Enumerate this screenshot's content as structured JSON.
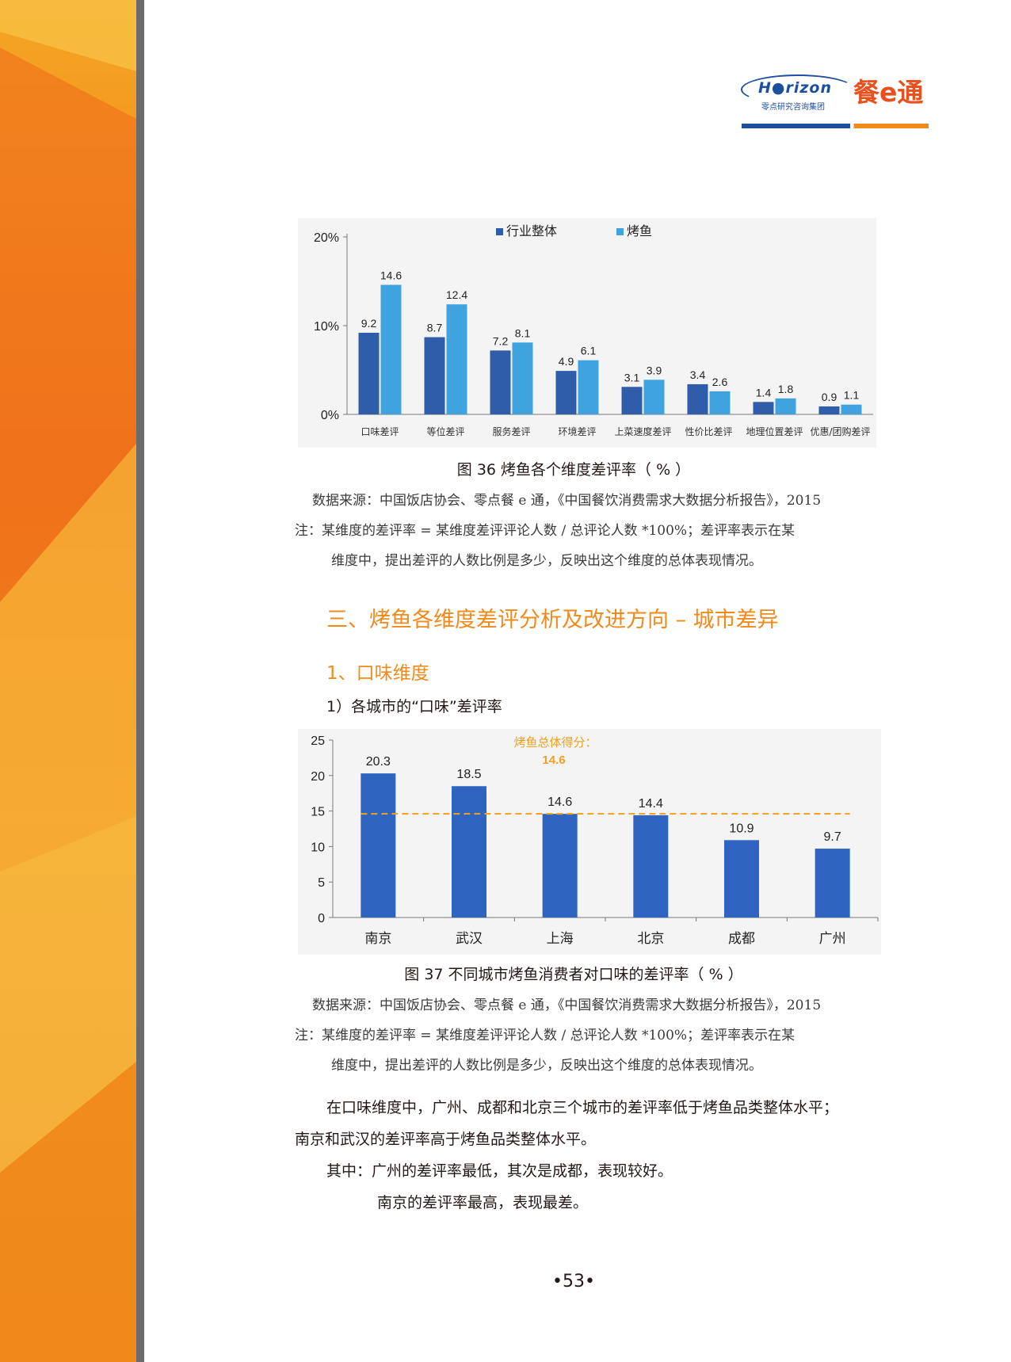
{
  "header": {
    "logo_text": "H●rizon",
    "logo_subtitle": "零点研究咨询集团",
    "brand_text": "餐e通"
  },
  "figure36": {
    "caption": "图 36    烤鱼各个维度差评率（ % ）",
    "source": "数据来源：中国饭店协会、零点餐 e 通，《中国餐饮消费需求大数据分析报告》，2015",
    "note_line1": "注：某维度的差评率 = 某维度差评评论人数 / 总评论人数 *100%；差评率表示在某",
    "note_line2": "维度中，提出差评的人数比例是多少，反映出这个维度的总体表现情况。"
  },
  "figure37": {
    "caption": "图 37    不同城市烤鱼消费者对口味的差评率（ % ）",
    "source": "数据来源：中国饭店协会、零点餐 e 通，《中国餐饮消费需求大数据分析报告》，2015",
    "note_line1": "注：某维度的差评率 = 某维度差评评论人数 / 总评论人数 *100%；差评率表示在某",
    "note_line2": "维度中，提出差评的人数比例是多少，反映出这个维度的总体表现情况。"
  },
  "section": {
    "title": "三、烤鱼各维度差评分析及改进方向 – 城市差异",
    "subtitle": "1、口味维度",
    "sub_subtitle": "1）各城市的“口味”差评率"
  },
  "body": {
    "p1_line1": "在口味维度中，广州、成都和北京三个城市的差评率低于烤鱼品类整体水平；",
    "p1_line2": "南京和武汉的差评率高于烤鱼品类整体水平。",
    "p2": "其中：广州的差评率最低，其次是成都，表现较好。",
    "p3": "南京的差评率最高，表现最差。"
  },
  "page_number": "•53•",
  "chart_data": [
    {
      "type": "bar",
      "categories": [
        "口味差评",
        "等位差评",
        "服务差评",
        "环境差评",
        "上菜速度差评",
        "性价比差评",
        "地理位置差评",
        "优惠/团购差评"
      ],
      "series": [
        {
          "name": "行业整体",
          "color": "#2f5daa",
          "values": [
            9.2,
            8.7,
            7.2,
            4.9,
            3.1,
            3.4,
            1.4,
            0.9
          ]
        },
        {
          "name": "烤鱼",
          "color": "#3fa3e0",
          "values": [
            14.6,
            12.4,
            8.1,
            6.1,
            3.9,
            2.6,
            1.8,
            1.1
          ]
        }
      ],
      "data_labels": [
        [
          "9.2",
          "8.7",
          "7.2",
          "4.9",
          "3.1",
          "3.4",
          "1.4",
          "0.9"
        ],
        [
          "14.6",
          "12.4",
          "8.1",
          "6.1",
          "3.9",
          "2.6",
          "1.8",
          "1.1"
        ]
      ],
      "yticks": [
        "0%",
        "10%",
        "20%"
      ],
      "ylim": [
        0,
        20
      ],
      "legend_position": "top-center",
      "grid": false
    },
    {
      "type": "bar",
      "categories": [
        "南京",
        "武汉",
        "上海",
        "北京",
        "成都",
        "广州"
      ],
      "values": [
        20.3,
        18.5,
        14.6,
        14.4,
        10.9,
        9.7
      ],
      "data_labels": [
        "20.3",
        "18.5",
        "14.6",
        "14.4",
        "10.9",
        "9.7"
      ],
      "bar_color": "#2f64c0",
      "yticks": [
        "0",
        "5",
        "10",
        "15",
        "20",
        "25"
      ],
      "ylim": [
        0,
        25
      ],
      "reference_line": {
        "value": 14.6,
        "label": "烤鱼总体得分：",
        "value_label": "14.6",
        "color": "#f0a020"
      },
      "grid": false
    }
  ]
}
